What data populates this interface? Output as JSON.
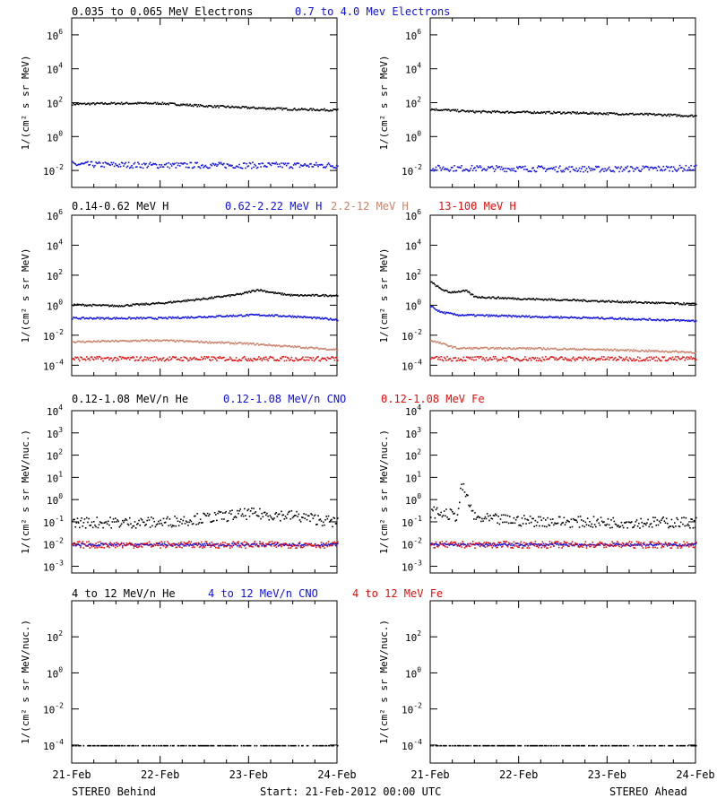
{
  "colors": {
    "black": "#000000",
    "blue": "#1010e0",
    "tan": "#c8826a",
    "red": "#e01010"
  },
  "footer": {
    "left": "STEREO Behind",
    "center": "Start: 21-Feb-2012 00:00 UTC",
    "right": "STEREO Ahead"
  },
  "x_ticks": [
    "21-Feb",
    "22-Feb",
    "23-Feb",
    "24-Feb"
  ],
  "rows": [
    {
      "titles": [
        {
          "text": "0.035 to 0.065 MeV Electrons",
          "color": "black"
        },
        {
          "text": "0.7 to 4.0 Mev Electrons",
          "color": "blue"
        }
      ],
      "ylabel": "1/(cm² s sr MeV)"
    },
    {
      "titles": [
        {
          "text": "0.14-0.62 MeV H",
          "color": "black"
        },
        {
          "text": "0.62-2.22 MeV H",
          "color": "blue"
        },
        {
          "text": "2.2-12 MeV H",
          "color": "tan"
        },
        {
          "text": "13-100 MeV H",
          "color": "red"
        }
      ],
      "ylabel": "1/(cm² s sr MeV)"
    },
    {
      "titles": [
        {
          "text": "0.12-1.08 MeV/n He",
          "color": "black"
        },
        {
          "text": "0.12-1.08 MeV/n CNO",
          "color": "blue"
        },
        {
          "text": "0.12-1.08 MeV Fe",
          "color": "red"
        }
      ],
      "ylabel": "1/(cm² s sr MeV/nuc.)"
    },
    {
      "titles": [
        {
          "text": "4 to 12 MeV/n He",
          "color": "black"
        },
        {
          "text": "4 to 12 MeV/n CNO",
          "color": "blue"
        },
        {
          "text": "4 to 12 MeV Fe",
          "color": "red"
        }
      ],
      "ylabel": "1/(cm² s sr MeV/nuc.)"
    }
  ],
  "chart_data": [
    {
      "type": "scatter",
      "panel": "STEREO Behind electrons",
      "y_log": true,
      "ylim": [
        0.001,
        10000000
      ],
      "yticks": [
        "10^6",
        "10^4",
        "10^2",
        "10^0",
        "10^-2"
      ],
      "x": [
        0,
        3
      ],
      "x_unit": "days since 21-Feb-2012 00:00 UTC",
      "series": [
        {
          "name": "0.035 to 0.065 MeV Electrons",
          "color": "black",
          "points": [
            [
              0,
              90
            ],
            [
              0.5,
              100
            ],
            [
              1,
              100
            ],
            [
              1.5,
              70
            ],
            [
              2,
              55
            ],
            [
              2.5,
              45
            ],
            [
              3,
              40
            ]
          ]
        },
        {
          "name": "0.7 to 4.0 Mev Electrons",
          "color": "blue",
          "points": [
            [
              0,
              0.025
            ],
            [
              1,
              0.022
            ],
            [
              2,
              0.022
            ],
            [
              3,
              0.022
            ]
          ]
        }
      ]
    },
    {
      "type": "scatter",
      "panel": "STEREO Ahead electrons",
      "y_log": true,
      "ylim": [
        0.001,
        10000000
      ],
      "yticks": [
        "10^6",
        "10^4",
        "10^2",
        "10^0",
        "10^-2"
      ],
      "x": [
        0,
        3
      ],
      "series": [
        {
          "name": "0.035 to 0.065 MeV Electrons",
          "color": "black",
          "points": [
            [
              0,
              45
            ],
            [
              0.5,
              32
            ],
            [
              1,
              30
            ],
            [
              1.5,
              28
            ],
            [
              2,
              25
            ],
            [
              2.5,
              22
            ],
            [
              3,
              18
            ]
          ]
        },
        {
          "name": "0.7 to 4.0 Mev Electrons",
          "color": "blue",
          "points": [
            [
              0,
              0.015
            ],
            [
              1,
              0.014
            ],
            [
              2,
              0.013
            ],
            [
              3,
              0.015
            ]
          ]
        }
      ]
    },
    {
      "type": "scatter",
      "panel": "STEREO Behind protons",
      "y_log": true,
      "ylim": [
        2e-05,
        1000000
      ],
      "yticks": [
        "10^6",
        "10^4",
        "10^2",
        "10^0",
        "10^-2",
        "10^-4"
      ],
      "x": [
        0,
        3
      ],
      "series": [
        {
          "name": "0.14-0.62 MeV H",
          "color": "black",
          "points": [
            [
              0,
              1.2
            ],
            [
              0.5,
              1.0
            ],
            [
              1,
              1.5
            ],
            [
              1.5,
              3
            ],
            [
              1.9,
              6
            ],
            [
              2.1,
              12
            ],
            [
              2.3,
              7
            ],
            [
              2.5,
              5
            ],
            [
              3,
              5
            ]
          ]
        },
        {
          "name": "0.62-2.22 MeV H",
          "color": "blue",
          "points": [
            [
              0,
              0.15
            ],
            [
              1,
              0.15
            ],
            [
              2.1,
              0.25
            ],
            [
              2.5,
              0.2
            ],
            [
              3,
              0.12
            ]
          ]
        },
        {
          "name": "2.2-12 MeV H",
          "color": "tan",
          "points": [
            [
              0,
              0.004
            ],
            [
              1,
              0.005
            ],
            [
              2,
              0.003
            ],
            [
              3,
              0.0012
            ]
          ]
        },
        {
          "name": "13-100 MeV H",
          "color": "red",
          "points": [
            [
              0,
              0.0003
            ],
            [
              1.5,
              0.0003
            ],
            [
              3,
              0.0003
            ]
          ]
        }
      ]
    },
    {
      "type": "scatter",
      "panel": "STEREO Ahead protons",
      "y_log": true,
      "ylim": [
        2e-05,
        1000000
      ],
      "yticks": [
        "10^6",
        "10^4",
        "10^2",
        "10^0",
        "10^-2",
        "10^-4"
      ],
      "x": [
        0,
        3
      ],
      "series": [
        {
          "name": "0.14-0.62 MeV H",
          "color": "black",
          "points": [
            [
              0,
              40
            ],
            [
              0.1,
              15
            ],
            [
              0.2,
              8
            ],
            [
              0.4,
              10
            ],
            [
              0.5,
              4
            ],
            [
              1,
              3
            ],
            [
              1.5,
              2.5
            ],
            [
              2,
              2
            ],
            [
              3,
              1.3
            ]
          ]
        },
        {
          "name": "0.62-2.22 MeV H",
          "color": "blue",
          "points": [
            [
              0,
              1
            ],
            [
              0.1,
              0.4
            ],
            [
              0.3,
              0.25
            ],
            [
              1,
              0.2
            ],
            [
              2,
              0.15
            ],
            [
              3,
              0.1
            ]
          ]
        },
        {
          "name": "2.2-12 MeV H",
          "color": "tan",
          "points": [
            [
              0,
              0.005
            ],
            [
              0.3,
              0.0015
            ],
            [
              1,
              0.0015
            ],
            [
              2,
              0.0012
            ],
            [
              3,
              0.0008
            ]
          ]
        },
        {
          "name": "13-100 MeV H",
          "color": "red",
          "points": [
            [
              0,
              0.0003
            ],
            [
              3,
              0.0003
            ]
          ]
        }
      ]
    },
    {
      "type": "scatter",
      "panel": "STEREO Behind low-energy ions",
      "y_log": true,
      "ylim": [
        0.0005,
        10000
      ],
      "yticks": [
        "10^4",
        "10^3",
        "10^2",
        "10^1",
        "10^0",
        "10^-1",
        "10^-2",
        "10^-3"
      ],
      "x": [
        0,
        3
      ],
      "series": [
        {
          "name": "0.12-1.08 MeV/n He",
          "color": "black",
          "points": [
            [
              0,
              0.1
            ],
            [
              1,
              0.1
            ],
            [
              2,
              0.25
            ],
            [
              2.5,
              0.2
            ],
            [
              3,
              0.1
            ]
          ]
        },
        {
          "name": "0.12-1.08 MeV/n CNO",
          "color": "blue",
          "points": [
            [
              0,
              0.01
            ],
            [
              3,
              0.01
            ]
          ]
        },
        {
          "name": "0.12-1.08 MeV Fe",
          "color": "red",
          "points": [
            [
              0,
              0.01
            ],
            [
              3,
              0.01
            ]
          ]
        }
      ]
    },
    {
      "type": "scatter",
      "panel": "STEREO Ahead low-energy ions",
      "y_log": true,
      "ylim": [
        0.0005,
        10000
      ],
      "yticks": [
        "10^4",
        "10^3",
        "10^2",
        "10^1",
        "10^0",
        "10^-1",
        "10^-2",
        "10^-3"
      ],
      "x": [
        0,
        3
      ],
      "series": [
        {
          "name": "0.12-1.08 MeV/n He",
          "color": "black",
          "points": [
            [
              0,
              0.3
            ],
            [
              0.3,
              0.2
            ],
            [
              0.35,
              5
            ],
            [
              0.5,
              0.15
            ],
            [
              1,
              0.12
            ],
            [
              2,
              0.1
            ],
            [
              3,
              0.1
            ]
          ]
        },
        {
          "name": "0.12-1.08 MeV/n CNO",
          "color": "blue",
          "points": [
            [
              0,
              0.01
            ],
            [
              3,
              0.01
            ]
          ]
        },
        {
          "name": "0.12-1.08 MeV Fe",
          "color": "red",
          "points": [
            [
              0,
              0.01
            ],
            [
              3,
              0.01
            ]
          ]
        }
      ]
    },
    {
      "type": "scatter",
      "panel": "STEREO Behind high-energy ions",
      "y_log": true,
      "ylim": [
        1e-05,
        10000
      ],
      "yticks": [
        "10^2",
        "10^0",
        "10^-2",
        "10^-4"
      ],
      "x": [
        0,
        3
      ],
      "series": [
        {
          "name": "4 to 12 MeV/n He",
          "color": "black",
          "points": [
            [
              0,
              0.0001
            ],
            [
              3,
              0.0001
            ]
          ]
        }
      ]
    },
    {
      "type": "scatter",
      "panel": "STEREO Ahead high-energy ions",
      "y_log": true,
      "ylim": [
        1e-05,
        10000
      ],
      "yticks": [
        "10^2",
        "10^0",
        "10^-2",
        "10^-4"
      ],
      "x": [
        0,
        3
      ],
      "series": [
        {
          "name": "4 to 12 MeV/n He",
          "color": "black",
          "points": [
            [
              0,
              0.0001
            ],
            [
              3,
              0.0001
            ]
          ]
        }
      ]
    }
  ]
}
